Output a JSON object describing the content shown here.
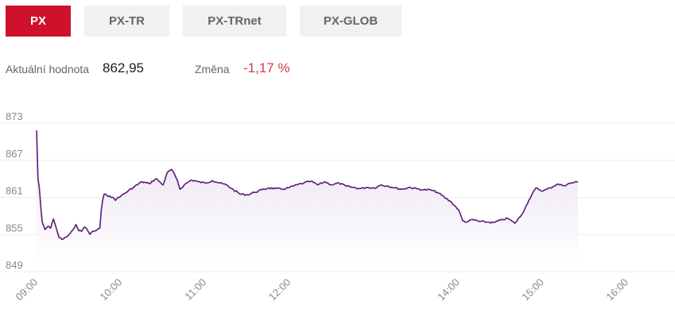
{
  "tabs": [
    {
      "label": "PX",
      "active": true
    },
    {
      "label": "PX-TR",
      "active": false
    },
    {
      "label": "PX-TRnet",
      "active": false
    },
    {
      "label": "PX-GLOB",
      "active": false
    }
  ],
  "stats": {
    "current_label": "Aktuální hodnota",
    "current_value": "862,95",
    "change_label": "Změna",
    "change_value": "-1,17 %"
  },
  "colors": {
    "accent": "#d0112b",
    "line": "#5c1a7a",
    "fill": "#efe9f4",
    "negative": "#d83a4f"
  },
  "chart_data": {
    "type": "area",
    "title": "",
    "xlabel": "",
    "ylabel": "",
    "ylim": [
      849,
      873
    ],
    "y_ticks": [
      873,
      867,
      861,
      855,
      849
    ],
    "x_tick_labels": [
      "09:00",
      "10:00",
      "11:00",
      "12:00",
      "14:00",
      "15:00",
      "16:00"
    ],
    "x_tick_times": [
      "09:00",
      "10:00",
      "11:00",
      "12:00",
      "14:00",
      "15:00",
      "16:00"
    ],
    "x_range": [
      "09:00",
      "16:30"
    ],
    "grid": true,
    "series": [
      {
        "name": "",
        "points": [
          [
            "09:00",
            870.8
          ],
          [
            "09:01",
            863.0
          ],
          [
            "09:02",
            861.5
          ],
          [
            "09:03",
            858.5
          ],
          [
            "09:04",
            856.0
          ],
          [
            "09:06",
            854.8
          ],
          [
            "09:08",
            855.3
          ],
          [
            "09:10",
            855.0
          ],
          [
            "09:12",
            856.5
          ],
          [
            "09:14",
            855.0
          ],
          [
            "09:16",
            853.5
          ],
          [
            "09:18",
            853.2
          ],
          [
            "09:20",
            853.5
          ],
          [
            "09:22",
            853.7
          ],
          [
            "09:24",
            854.2
          ],
          [
            "09:26",
            854.8
          ],
          [
            "09:28",
            855.6
          ],
          [
            "09:30",
            854.6
          ],
          [
            "09:32",
            854.5
          ],
          [
            "09:34",
            855.2
          ],
          [
            "09:36",
            854.8
          ],
          [
            "09:38",
            854.0
          ],
          [
            "09:40",
            854.5
          ],
          [
            "09:42",
            854.6
          ],
          [
            "09:45",
            855.0
          ],
          [
            "09:46",
            858.0
          ],
          [
            "09:47",
            859.5
          ],
          [
            "09:48",
            860.5
          ],
          [
            "09:50",
            860.3
          ],
          [
            "09:52",
            860.2
          ],
          [
            "09:54",
            860.0
          ],
          [
            "09:56",
            859.5
          ],
          [
            "09:58",
            860.0
          ],
          [
            "10:00",
            860.2
          ],
          [
            "10:05",
            861.0
          ],
          [
            "10:10",
            861.8
          ],
          [
            "10:15",
            862.5
          ],
          [
            "10:20",
            862.2
          ],
          [
            "10:25",
            863.0
          ],
          [
            "10:30",
            862.0
          ],
          [
            "10:33",
            864.0
          ],
          [
            "10:36",
            864.5
          ],
          [
            "10:40",
            862.8
          ],
          [
            "10:42",
            861.3
          ],
          [
            "10:45",
            862.0
          ],
          [
            "10:50",
            862.8
          ],
          [
            "10:55",
            862.5
          ],
          [
            "11:00",
            862.3
          ],
          [
            "11:05",
            862.7
          ],
          [
            "11:10",
            862.3
          ],
          [
            "11:15",
            862.0
          ],
          [
            "11:20",
            861.2
          ],
          [
            "11:25",
            860.5
          ],
          [
            "11:30",
            860.4
          ],
          [
            "11:35",
            860.8
          ],
          [
            "11:40",
            861.2
          ],
          [
            "11:45",
            861.5
          ],
          [
            "11:50",
            861.4
          ],
          [
            "11:55",
            861.3
          ],
          [
            "12:00",
            861.6
          ],
          [
            "12:05",
            862.0
          ],
          [
            "12:10",
            862.3
          ],
          [
            "12:15",
            862.6
          ],
          [
            "12:20",
            862.0
          ],
          [
            "12:25",
            862.5
          ],
          [
            "12:30",
            862.0
          ],
          [
            "12:35",
            862.3
          ],
          [
            "12:40",
            861.8
          ],
          [
            "12:45",
            861.6
          ],
          [
            "12:50",
            861.4
          ],
          [
            "12:55",
            861.6
          ],
          [
            "13:00",
            861.5
          ],
          [
            "13:05",
            862.0
          ],
          [
            "13:10",
            861.8
          ],
          [
            "13:15",
            861.5
          ],
          [
            "13:20",
            861.3
          ],
          [
            "13:25",
            861.6
          ],
          [
            "13:30",
            861.4
          ],
          [
            "13:35",
            861.2
          ],
          [
            "13:40",
            861.2
          ],
          [
            "13:45",
            860.8
          ],
          [
            "13:50",
            860.0
          ],
          [
            "13:55",
            859.2
          ],
          [
            "14:00",
            858.0
          ],
          [
            "14:03",
            856.2
          ],
          [
            "14:06",
            856.0
          ],
          [
            "14:10",
            856.4
          ],
          [
            "14:15",
            856.1
          ],
          [
            "14:20",
            856.0
          ],
          [
            "14:25",
            855.9
          ],
          [
            "14:30",
            856.3
          ],
          [
            "14:35",
            856.6
          ],
          [
            "14:40",
            855.8
          ],
          [
            "14:45",
            857.2
          ],
          [
            "14:50",
            859.5
          ],
          [
            "14:55",
            861.5
          ],
          [
            "15:00",
            861.0
          ],
          [
            "15:05",
            861.5
          ],
          [
            "15:10",
            862.1
          ],
          [
            "15:15",
            861.9
          ],
          [
            "15:20",
            862.3
          ],
          [
            "15:25",
            862.5
          ]
        ]
      }
    ]
  }
}
